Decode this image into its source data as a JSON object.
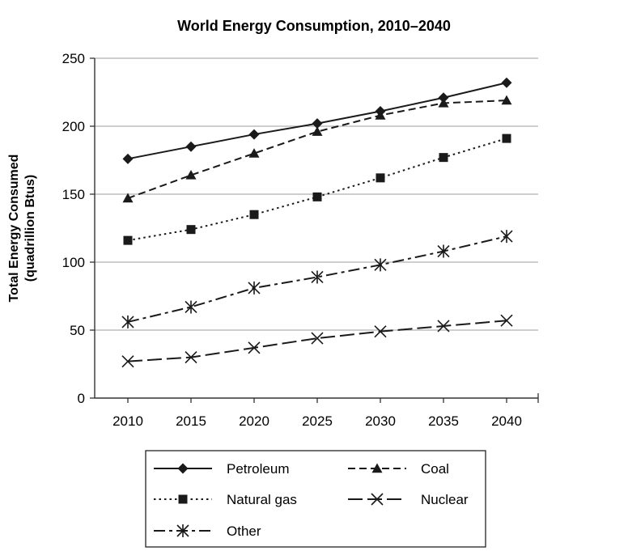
{
  "chart_data": {
    "type": "line",
    "title": "World Energy Consumption, 2010–2040",
    "ylabel_line1": "Total Energy Consumed",
    "ylabel_line2": "(quadrillion Btus)",
    "xlabel": "",
    "x": [
      2010,
      2015,
      2020,
      2025,
      2030,
      2035,
      2040
    ],
    "ylim": [
      0,
      250
    ],
    "yticks": [
      0,
      50,
      100,
      150,
      200,
      250
    ],
    "grid": "horizontal",
    "legend_position": "bottom",
    "series": [
      {
        "name": "Petroleum",
        "marker": "diamond",
        "dash": "solid",
        "values": [
          176,
          185,
          194,
          202,
          211,
          221,
          232
        ]
      },
      {
        "name": "Coal",
        "marker": "triangle",
        "dash": "dashed",
        "values": [
          147,
          164,
          180,
          196,
          208,
          217,
          219
        ]
      },
      {
        "name": "Natural gas",
        "marker": "square",
        "dash": "dotted",
        "values": [
          116,
          124,
          135,
          148,
          162,
          177,
          191
        ]
      },
      {
        "name": "Nuclear",
        "marker": "x",
        "dash": "longdash",
        "values": [
          27,
          30,
          37,
          44,
          49,
          53,
          57
        ]
      },
      {
        "name": "Other",
        "marker": "asterisk",
        "dash": "dashdot",
        "values": [
          56,
          67,
          81,
          89,
          98,
          108,
          119
        ]
      }
    ],
    "colors": {
      "line": "#1a1a1a",
      "grid": "#b0b0b0",
      "axis": "#333333"
    }
  }
}
